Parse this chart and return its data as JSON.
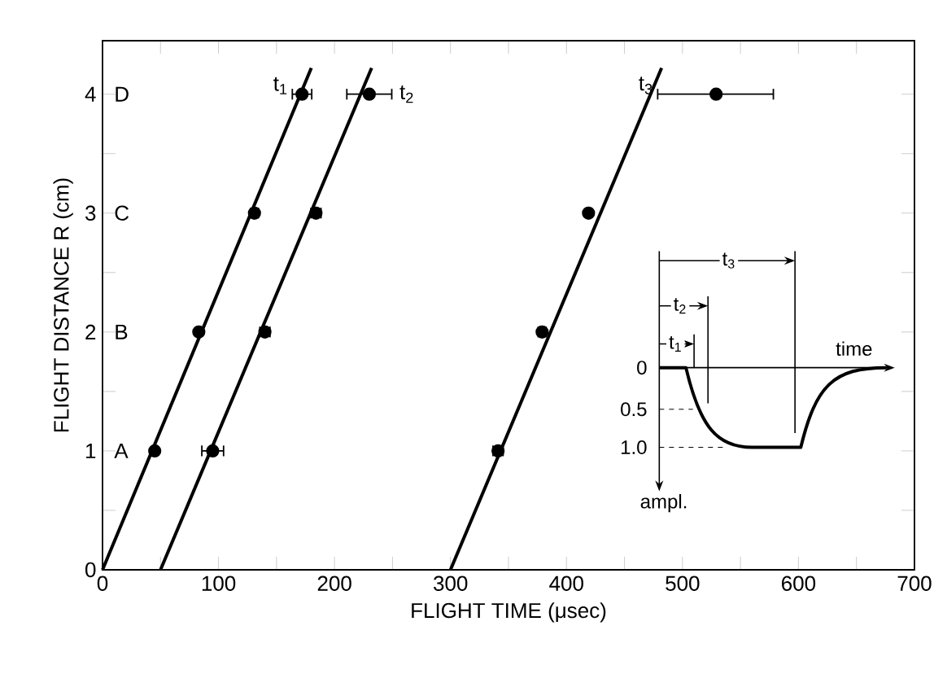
{
  "chart_data": {
    "type": "scatter",
    "xlabel": "FLIGHT TIME (μsec)",
    "ylabel": "FLIGHT DISTANCE R (cm)",
    "xlim": [
      0,
      700
    ],
    "ylim": [
      0,
      4.45
    ],
    "xticks": [
      0,
      {
        "value": 50,
        "label": null
      },
      100,
      {
        "value": 150,
        "label": null
      },
      200,
      {
        "value": 250,
        "label": null
      },
      300,
      {
        "value": 350,
        "label": null
      },
      400,
      {
        "value": 450,
        "label": null
      },
      500,
      {
        "value": 550,
        "label": null
      },
      600,
      {
        "value": 650,
        "label": null
      },
      700
    ],
    "yticks": [
      0,
      {
        "value": 0.5,
        "label": null
      },
      1,
      {
        "value": 1.5,
        "label": null
      },
      2,
      {
        "value": 2.5,
        "label": null
      },
      3,
      {
        "value": 3.5,
        "label": null
      },
      4
    ],
    "grid": false,
    "series": [
      {
        "name": "t$_{1}$",
        "marker": "circle",
        "color": "#000000",
        "x": [
          45,
          83,
          131,
          172
        ],
        "values": [
          1,
          2,
          3,
          4
        ],
        "xerrors": [
          null,
          null,
          4,
          9
        ]
      },
      {
        "name": "t$_{2}$",
        "marker": "circle",
        "color": "#000000",
        "x": [
          95,
          140,
          184,
          230
        ],
        "values": [
          1,
          2,
          3,
          4
        ],
        "xerrors": [
          10,
          5,
          5,
          20
        ]
      },
      {
        "name": "t$_{3}$",
        "marker": "circle",
        "color": "#000000",
        "x": [
          341,
          379,
          419,
          529
        ],
        "values": [
          1,
          2,
          3,
          4
        ],
        "xerrors": [
          5,
          4,
          null,
          [
            478,
            579
          ]
        ]
      },
      {
        "type": "line",
        "marker": "none",
        "color": "#000000",
        "x": [
          0,
          180
        ],
        "values": [
          0,
          4.22
        ]
      },
      {
        "type": "line",
        "marker": "none",
        "color": "#000000",
        "x": [
          50,
          232
        ],
        "values": [
          0,
          4.22
        ]
      },
      {
        "type": "line",
        "marker": "none",
        "color": "#000000",
        "x": [
          300,
          482
        ],
        "values": [
          0,
          4.22
        ]
      }
    ],
    "annotations": [
      "A",
      "B",
      "C",
      "D",
      "t$_{1}$",
      "t$_{2}$",
      "t$_{3}$",
      "time",
      "0",
      "0.5",
      "1.0",
      "ampl."
    ]
  }
}
